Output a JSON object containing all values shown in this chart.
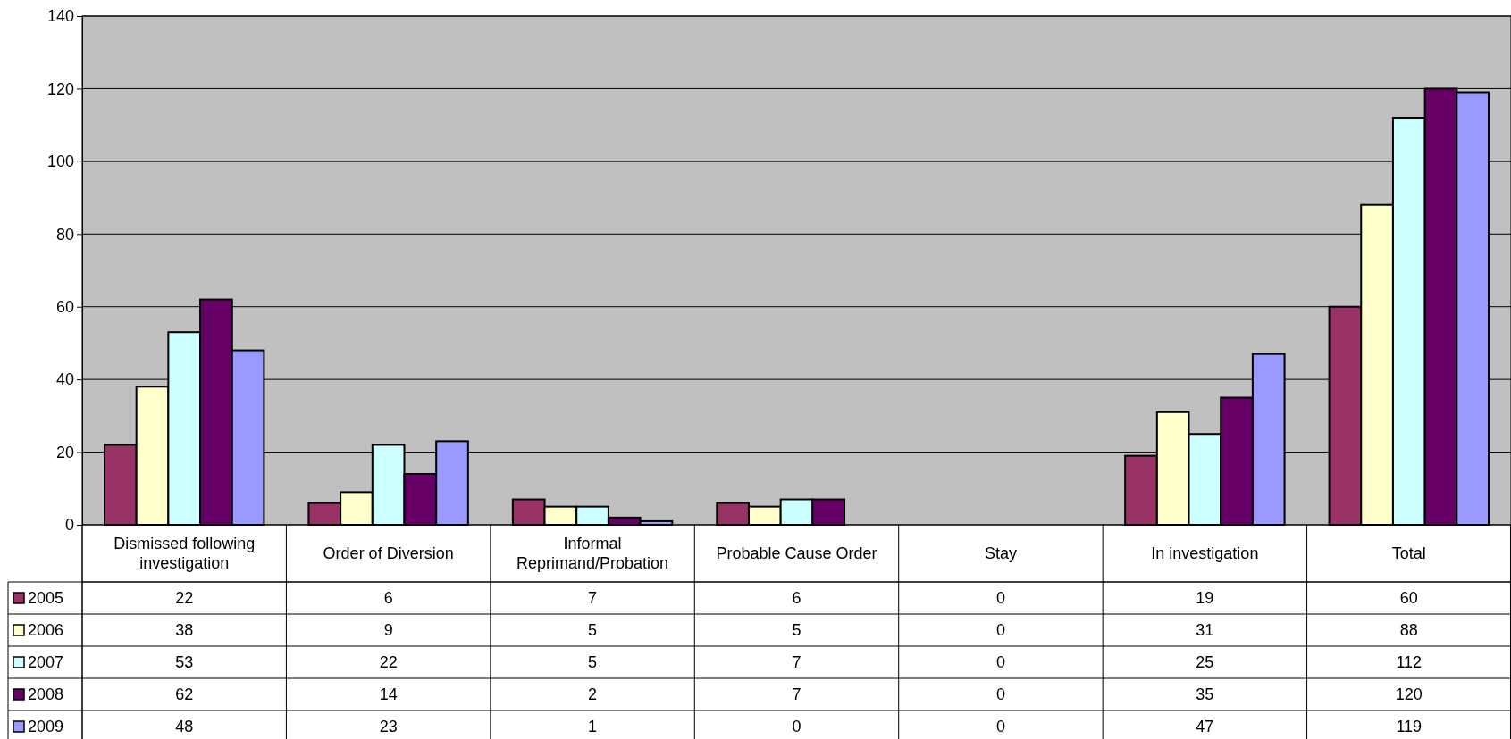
{
  "chart_data": {
    "type": "bar",
    "categories": [
      "Dismissed following investigation",
      "Order of Diversion",
      "Informal Reprimand/Probation",
      "Probable Cause Order",
      "Stay",
      "In investigation",
      "Total"
    ],
    "series": [
      {
        "name": "2005",
        "color": "#993366",
        "values": [
          22,
          6,
          7,
          6,
          0,
          19,
          60
        ]
      },
      {
        "name": "2006",
        "color": "#ffffcc",
        "values": [
          38,
          9,
          5,
          5,
          0,
          31,
          88
        ]
      },
      {
        "name": "2007",
        "color": "#ccffff",
        "values": [
          53,
          22,
          5,
          7,
          0,
          25,
          112
        ]
      },
      {
        "name": "2008",
        "color": "#660066",
        "values": [
          62,
          14,
          2,
          7,
          0,
          35,
          120
        ]
      },
      {
        "name": "2009",
        "color": "#9999ff",
        "values": [
          48,
          23,
          1,
          0,
          0,
          47,
          119
        ]
      }
    ],
    "ylim": [
      0,
      140
    ],
    "yticks": [
      0,
      20,
      40,
      60,
      80,
      100,
      120,
      140
    ],
    "grid": "y",
    "legend": "bottom left",
    "data_labels": true
  }
}
